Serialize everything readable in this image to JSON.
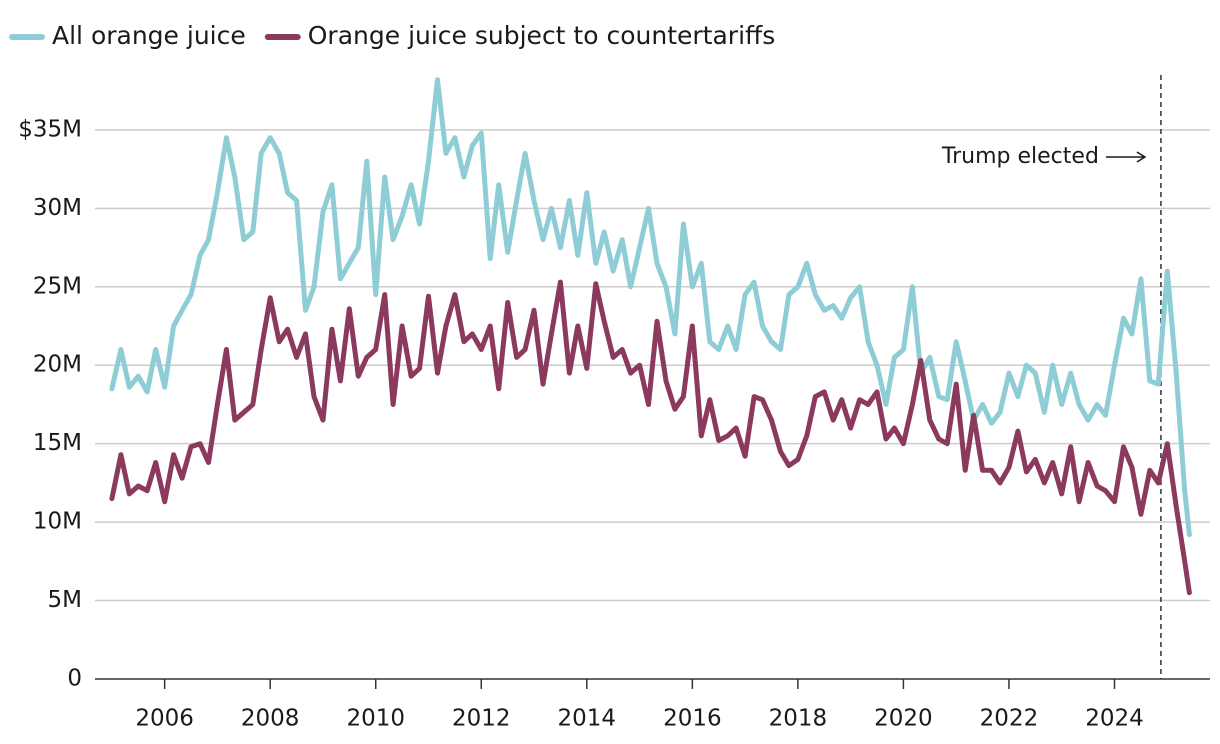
{
  "chart_data": {
    "type": "line",
    "x": [
      2005.0,
      2005.17,
      2005.33,
      2005.5,
      2005.67,
      2005.83,
      2006.0,
      2006.17,
      2006.33,
      2006.5,
      2006.67,
      2006.83,
      2007.0,
      2007.17,
      2007.33,
      2007.5,
      2007.67,
      2007.83,
      2008.0,
      2008.17,
      2008.33,
      2008.5,
      2008.67,
      2008.83,
      2009.0,
      2009.17,
      2009.33,
      2009.5,
      2009.67,
      2009.83,
      2010.0,
      2010.17,
      2010.33,
      2010.5,
      2010.67,
      2010.83,
      2011.0,
      2011.17,
      2011.33,
      2011.5,
      2011.67,
      2011.83,
      2012.0,
      2012.17,
      2012.33,
      2012.5,
      2012.67,
      2012.83,
      2013.0,
      2013.17,
      2013.33,
      2013.5,
      2013.67,
      2013.83,
      2014.0,
      2014.17,
      2014.33,
      2014.5,
      2014.67,
      2014.83,
      2015.0,
      2015.17,
      2015.33,
      2015.5,
      2015.67,
      2015.83,
      2016.0,
      2016.17,
      2016.33,
      2016.5,
      2016.67,
      2016.83,
      2017.0,
      2017.17,
      2017.33,
      2017.5,
      2017.67,
      2017.83,
      2018.0,
      2018.17,
      2018.33,
      2018.5,
      2018.67,
      2018.83,
      2019.0,
      2019.17,
      2019.33,
      2019.5,
      2019.67,
      2019.83,
      2020.0,
      2020.17,
      2020.33,
      2020.5,
      2020.67,
      2020.83,
      2021.0,
      2021.17,
      2021.33,
      2021.5,
      2021.67,
      2021.83,
      2022.0,
      2022.17,
      2022.33,
      2022.5,
      2022.67,
      2022.83,
      2023.0,
      2023.17,
      2023.33,
      2023.5,
      2023.67,
      2023.83,
      2024.0,
      2024.17,
      2024.33,
      2024.5,
      2024.67,
      2024.83,
      2025.0,
      2025.17,
      2025.33,
      2025.42
    ],
    "series": [
      {
        "name": "All orange juice",
        "color": "#8ecdd6",
        "values": [
          18.5,
          21.0,
          18.6,
          19.3,
          18.3,
          21.0,
          18.6,
          22.5,
          23.5,
          24.5,
          27.0,
          28.0,
          31.0,
          34.5,
          32.0,
          28.0,
          28.5,
          33.5,
          34.5,
          33.5,
          31.0,
          30.5,
          23.5,
          25.0,
          29.8,
          31.5,
          25.5,
          26.5,
          27.5,
          33.0,
          24.5,
          32.0,
          28.0,
          29.5,
          31.5,
          29.0,
          33.0,
          38.2,
          33.5,
          34.5,
          32.0,
          34.0,
          34.8,
          26.8,
          31.5,
          27.2,
          30.5,
          33.5,
          30.5,
          28.0,
          30.0,
          27.5,
          30.5,
          27.0,
          31.0,
          26.5,
          28.5,
          26.0,
          28.0,
          25.0,
          27.5,
          30.0,
          26.5,
          25.0,
          22.0,
          29.0,
          25.0,
          26.5,
          21.5,
          21.0,
          22.5,
          21.0,
          24.5,
          25.3,
          22.5,
          21.5,
          21.0,
          24.5,
          25.0,
          26.5,
          24.5,
          23.5,
          23.8,
          23.0,
          24.3,
          25.0,
          21.5,
          20.0,
          17.5,
          20.5,
          21.0,
          25.0,
          19.5,
          20.5,
          18.0,
          17.8,
          21.5,
          19.0,
          16.5,
          17.5,
          16.3,
          17.0,
          19.5,
          18.0,
          20.0,
          19.5,
          17.0,
          20.0,
          17.5,
          19.5,
          17.5,
          16.5,
          17.5,
          16.8,
          20.0,
          23.0,
          22.0,
          25.5,
          19.0,
          18.8,
          26.0,
          19.5,
          12.0,
          9.2
        ]
      },
      {
        "name": "Orange juice subject to countertariffs",
        "color": "#8b3a5e",
        "values": [
          11.5,
          14.3,
          11.8,
          12.3,
          12.0,
          13.8,
          11.3,
          14.3,
          12.8,
          14.8,
          15.0,
          13.8,
          17.5,
          21.0,
          16.5,
          17.0,
          17.5,
          21.0,
          24.3,
          21.5,
          22.3,
          20.5,
          22.0,
          18.0,
          16.5,
          22.3,
          19.0,
          23.6,
          19.3,
          20.5,
          21.0,
          24.5,
          17.5,
          22.5,
          19.3,
          19.8,
          24.4,
          19.5,
          22.5,
          24.5,
          21.5,
          22.0,
          21.0,
          22.5,
          18.5,
          24.0,
          20.5,
          21.0,
          23.5,
          18.8,
          22.0,
          25.3,
          19.5,
          22.5,
          19.8,
          25.2,
          22.8,
          20.5,
          21.0,
          19.5,
          20.0,
          17.5,
          22.8,
          19.0,
          17.2,
          18.0,
          22.5,
          15.5,
          17.8,
          15.2,
          15.5,
          16.0,
          14.2,
          18.0,
          17.8,
          16.5,
          14.5,
          13.6,
          14.0,
          15.5,
          18.0,
          18.3,
          16.5,
          17.8,
          16.0,
          17.8,
          17.5,
          18.3,
          15.3,
          16.0,
          15.0,
          17.5,
          20.3,
          16.5,
          15.3,
          15.0,
          18.8,
          13.3,
          16.8,
          13.3,
          13.3,
          12.5,
          13.5,
          15.8,
          13.2,
          14.0,
          12.5,
          13.8,
          11.8,
          14.8,
          11.3,
          13.8,
          12.3,
          12.0,
          11.3,
          14.8,
          13.5,
          10.5,
          13.3,
          12.5,
          15.0,
          11.0,
          7.5,
          5.5
        ]
      }
    ],
    "xlim": [
      2004.68,
      2025.81
    ],
    "xticks": [
      2006,
      2008,
      2010,
      2012,
      2014,
      2016,
      2018,
      2020,
      2022,
      2024
    ],
    "ylim": [
      0,
      38.5
    ],
    "yticks": [
      0,
      {
        "value": 5,
        "label": "5M"
      },
      {
        "value": 10,
        "label": "10M"
      },
      {
        "value": 15,
        "label": "15M"
      },
      {
        "value": 20,
        "label": "20M"
      },
      {
        "value": 25,
        "label": "25M"
      },
      {
        "value": 30,
        "label": "30M"
      },
      {
        "value": 35,
        "label": "$35M"
      }
    ],
    "grid": true,
    "legend": "top-left",
    "annotations": [
      {
        "text": "Trump elected",
        "x": 2024.88
      }
    ]
  }
}
